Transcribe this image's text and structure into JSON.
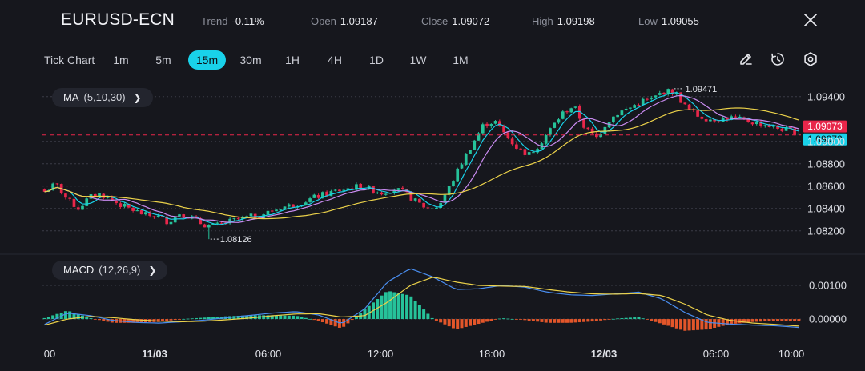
{
  "header": {
    "symbol": "EURUSD-ECN",
    "stats": [
      {
        "key": "Trend",
        "value": "-0.11%"
      },
      {
        "key": "Open",
        "value": "1.09187"
      },
      {
        "key": "Close",
        "value": "1.09072"
      },
      {
        "key": "High",
        "value": "1.09198"
      },
      {
        "key": "Low",
        "value": "1.09055"
      }
    ],
    "close_icon": "close-icon"
  },
  "toolbar": {
    "chart_type": "Tick Chart",
    "timeframes": [
      "1m",
      "5m",
      "15m",
      "30m",
      "1H",
      "4H",
      "1D",
      "1W",
      "1M"
    ],
    "active_timeframe": "15m",
    "tools": [
      "draw-icon",
      "timer-icon",
      "settings-icon"
    ]
  },
  "indicators": {
    "ma": {
      "label": "MA",
      "params": "(5,10,30)"
    },
    "macd": {
      "label": "MACD",
      "params": "(12,26,9)"
    }
  },
  "colors": {
    "background": "#16171d",
    "bull": "#26c29a",
    "bear": "#e8264a",
    "ma5": "#19d2ea",
    "ma10": "#c98bf0",
    "ma30": "#ecd24a",
    "macd_line": "#4a8ef0",
    "signal_line": "#ecd24a",
    "hist_pos": "#26c29a",
    "hist_neg": "#e3562a",
    "accent": "#19d2ea"
  },
  "chart_data": {
    "type": "candlestick",
    "price_axis": {
      "ticks": [
        "1.09400",
        "1.09000",
        "1.08800",
        "1.08600",
        "1.08400",
        "1.08200"
      ],
      "range": [
        1.0812,
        1.0952
      ]
    },
    "x_ticks": [
      "00",
      "11/03",
      "06:00",
      "12:00",
      "18:00",
      "12/03",
      "06:00",
      "10:00"
    ],
    "price_path": [
      1.0855,
      1.0862,
      1.0848,
      1.084,
      1.085,
      1.0853,
      1.0847,
      1.0842,
      1.0838,
      1.0834,
      1.0833,
      1.0828,
      1.0836,
      1.0832,
      1.0826,
      1.0824,
      1.0827,
      1.083,
      1.0832,
      1.0834,
      1.0837,
      1.0841,
      1.0843,
      1.0846,
      1.085,
      1.0853,
      1.0856,
      1.0858,
      1.086,
      1.0857,
      1.0854,
      1.0858,
      1.0854,
      1.0846,
      1.084,
      1.0842,
      1.086,
      1.088,
      1.0898,
      1.0915,
      1.0918,
      1.0905,
      1.0894,
      1.0888,
      1.0898,
      1.0912,
      1.0925,
      1.0932,
      1.0912,
      1.0903,
      1.0918,
      1.0926,
      1.093,
      1.0936,
      1.0938,
      1.0945,
      1.0944,
      1.093,
      1.0923,
      1.092,
      1.092,
      1.0921,
      1.0919,
      1.0917,
      1.0915,
      1.0912,
      1.091,
      1.0908
    ],
    "candle_count": 180,
    "annotations": {
      "high_label": "1.09471",
      "low_label": "1.08126"
    },
    "price_tags": {
      "ask": "1.09073",
      "bid": "1.09072"
    },
    "macd_axis": {
      "ticks": [
        "0.00100",
        "0.00000"
      ],
      "range": [
        -0.00045,
        0.0015
      ]
    },
    "macd_path": [
      -0.00016,
      0.00018,
      0.0001,
      -4e-05,
      -0.0001,
      -0.00012,
      -8e-05,
      -3e-05,
      4e-05,
      0.00011,
      0.00018,
      0.00022,
      0.00012,
      -0.00014,
      0.0003,
      0.0011,
      0.0015,
      0.00125,
      0.00088,
      0.0009,
      0.001,
      0.00095,
      0.0008,
      0.00072,
      0.0007,
      0.00075,
      0.0008,
      0.0006,
      0.0002,
      -0.0001,
      -0.00015,
      -0.00018,
      -0.0002,
      -0.00025
    ],
    "signal_path": [
      -0.00018,
      0.0,
      8e-05,
      4e-05,
      -2e-05,
      -6e-05,
      -8e-05,
      -6e-05,
      -2e-05,
      3e-05,
      0.0001,
      0.00015,
      0.00016,
      6e-05,
      0.0001,
      0.0005,
      0.001,
      0.00125,
      0.0011,
      0.001,
      0.00098,
      0.00097,
      0.00088,
      0.0008,
      0.00075,
      0.00074,
      0.00076,
      0.0007,
      0.00045,
      0.00012,
      -4e-05,
      -0.00012,
      -0.00016,
      -0.00021
    ]
  }
}
